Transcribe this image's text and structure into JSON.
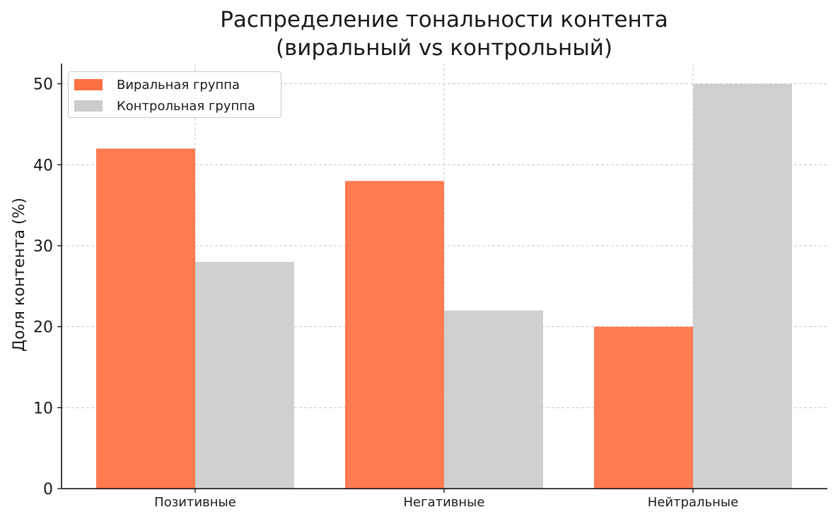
{
  "chart_data": {
    "type": "bar",
    "title": "Распределение тональности контента",
    "subtitle": "(виральный vs контрольный)",
    "xlabel": "",
    "ylabel": "Доля контента (%)",
    "categories": [
      "Позитивные",
      "Негативные",
      "Нейтральные"
    ],
    "series": [
      {
        "name": "Виральная группа",
        "values": [
          42,
          38,
          20
        ],
        "color": "#ff7043"
      },
      {
        "name": "Контрольная группа",
        "values": [
          28,
          22,
          50
        ],
        "color": "#cccccc"
      }
    ],
    "yticks": [
      0,
      10,
      20,
      30,
      40,
      50
    ],
    "ylim": [
      0,
      52.5
    ],
    "grid": true,
    "legend": "top-left"
  }
}
